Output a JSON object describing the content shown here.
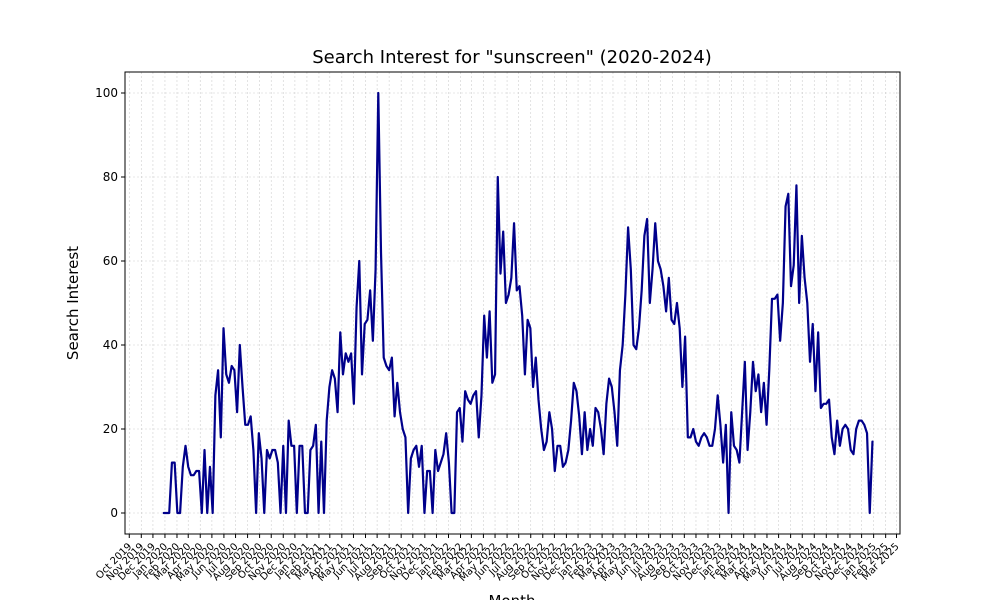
{
  "chart_data": {
    "type": "line",
    "title": "Search Interest for \"sunscreen\" (2020-2024)",
    "xlabel": "Month",
    "ylabel": "Search Interest",
    "grid": true,
    "ylim": [
      -5,
      105
    ],
    "xlim": [
      "2019-09-20",
      "2025-03-10"
    ],
    "y_ticks": [
      0,
      20,
      40,
      60,
      80,
      100
    ],
    "x_ticks": [
      "Oct 2019",
      "Nov 2019",
      "Dec 2019",
      "Jan 2020",
      "Feb 2020",
      "Mar 2020",
      "Apr 2020",
      "May 2020",
      "Jun 2020",
      "Jul 2020",
      "Aug 2020",
      "Sep 2020",
      "Oct 2020",
      "Nov 2020",
      "Dec 2020",
      "Jan 2021",
      "Feb 2021",
      "Mar 2021",
      "Apr 2021",
      "May 2021",
      "Jun 2021",
      "Jul 2021",
      "Aug 2021",
      "Sep 2021",
      "Oct 2021",
      "Nov 2021",
      "Dec 2021",
      "Jan 2022",
      "Feb 2022",
      "Mar 2022",
      "Apr 2022",
      "May 2022",
      "Jun 2022",
      "Jul 2022",
      "Aug 2022",
      "Sep 2022",
      "Oct 2022",
      "Nov 2022",
      "Dec 2022",
      "Jan 2023",
      "Feb 2023",
      "Mar 2023",
      "Apr 2023",
      "May 2023",
      "Jun 2023",
      "Jul 2023",
      "Aug 2023",
      "Sep 2023",
      "Oct 2023",
      "Nov 2023",
      "Dec 2023",
      "Jan 2024",
      "Feb 2024",
      "Mar 2024",
      "Apr 2024",
      "May 2024",
      "Jun 2024",
      "Jul 2024",
      "Aug 2024",
      "Sep 2024",
      "Oct 2024",
      "Nov 2024",
      "Dec 2024",
      "Jan 2025",
      "Feb 2025",
      "Mar 2025"
    ],
    "series": [
      {
        "name": "",
        "color": "#00008b",
        "start_date": "2019-12-29",
        "step_days": 7,
        "values": [
          0,
          0,
          0,
          12,
          12,
          0,
          0,
          11,
          16,
          11,
          9,
          9,
          10,
          10,
          0,
          15,
          0,
          11,
          0,
          28,
          34,
          18,
          44,
          33,
          31,
          35,
          34,
          24,
          40,
          30,
          21,
          21,
          23,
          15,
          0,
          19,
          13,
          0,
          15,
          13,
          15,
          15,
          12,
          0,
          16,
          0,
          22,
          16,
          16,
          0,
          16,
          16,
          0,
          0,
          15,
          16,
          21,
          0,
          17,
          0,
          22,
          30,
          34,
          32,
          24,
          43,
          33,
          38,
          36,
          38,
          26,
          49,
          60,
          33,
          45,
          46,
          53,
          41,
          58,
          100,
          62,
          37,
          35,
          34,
          37,
          23,
          31,
          24,
          20,
          18,
          0,
          13,
          15,
          16,
          11,
          16,
          0,
          10,
          10,
          0,
          15,
          10,
          12,
          14,
          19,
          12,
          0,
          0,
          24,
          25,
          17,
          29,
          27,
          26,
          28,
          29,
          18,
          28,
          47,
          37,
          48,
          31,
          33,
          80,
          57,
          67,
          50,
          52,
          56,
          69,
          53,
          54,
          47,
          33,
          46,
          44,
          30,
          37,
          27,
          20,
          15,
          17,
          24,
          20,
          10,
          16,
          16,
          11,
          12,
          15,
          22,
          31,
          29,
          23,
          14,
          24,
          15,
          20,
          16,
          25,
          24,
          20,
          14,
          26,
          32,
          30,
          24,
          16,
          34,
          40,
          52,
          68,
          58,
          40,
          39,
          44,
          53,
          66,
          70,
          50,
          58,
          69,
          60,
          58,
          54,
          48,
          56,
          46,
          45,
          50,
          44,
          30,
          42,
          18,
          18,
          20,
          17,
          16,
          18,
          19,
          18,
          16,
          16,
          20,
          28,
          21,
          12,
          21,
          0,
          24,
          16,
          15,
          12,
          24,
          36,
          15,
          24,
          36,
          29,
          33,
          24,
          31,
          21,
          34,
          51,
          51,
          52,
          41,
          50,
          73,
          76,
          54,
          59,
          78,
          50,
          66,
          56,
          50,
          36,
          45,
          29,
          43,
          25,
          26,
          26,
          27,
          18,
          14,
          22,
          16,
          20,
          21,
          20,
          15,
          14,
          20,
          22,
          22,
          21,
          19,
          0,
          17
        ]
      }
    ]
  }
}
